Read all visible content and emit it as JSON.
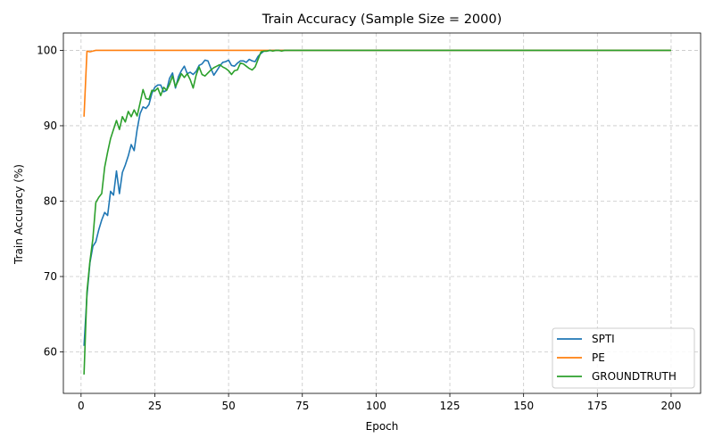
{
  "chart_data": {
    "type": "line",
    "title": "Train Accuracy (Sample Size = 2000)",
    "xlabel": "Epoch",
    "ylabel": "Train Accuracy (%)",
    "xlim": [
      -6,
      210
    ],
    "ylim": [
      54.5,
      102.3
    ],
    "xticks": [
      0,
      25,
      50,
      75,
      100,
      125,
      150,
      175,
      200
    ],
    "yticks": [
      60,
      70,
      80,
      90,
      100
    ],
    "grid": true,
    "legend_position": "bottom-right",
    "series": [
      {
        "name": "SPTI",
        "color": "#1f77b4",
        "points": [
          [
            1,
            60.8
          ],
          [
            2,
            67.5
          ],
          [
            3,
            71.8
          ],
          [
            4,
            74.0
          ],
          [
            5,
            74.6
          ],
          [
            6,
            76.2
          ],
          [
            7,
            77.5
          ],
          [
            8,
            78.5
          ],
          [
            9,
            78.1
          ],
          [
            10,
            81.3
          ],
          [
            11,
            80.8
          ],
          [
            12,
            84.0
          ],
          [
            13,
            81.0
          ],
          [
            14,
            83.8
          ],
          [
            15,
            84.8
          ],
          [
            16,
            86.0
          ],
          [
            17,
            87.5
          ],
          [
            18,
            86.7
          ],
          [
            19,
            89.5
          ],
          [
            20,
            91.6
          ],
          [
            21,
            92.5
          ],
          [
            22,
            92.3
          ],
          [
            23,
            92.8
          ],
          [
            24,
            94.3
          ],
          [
            25,
            95.1
          ],
          [
            26,
            95.4
          ],
          [
            27,
            95.4
          ],
          [
            28,
            94.5
          ],
          [
            29,
            94.7
          ],
          [
            30,
            96.3
          ],
          [
            31,
            97.0
          ],
          [
            32,
            95.0
          ],
          [
            33,
            96.5
          ],
          [
            34,
            97.3
          ],
          [
            35,
            97.9
          ],
          [
            36,
            96.9
          ],
          [
            37,
            97.1
          ],
          [
            38,
            96.8
          ],
          [
            39,
            97.2
          ],
          [
            40,
            98.0
          ],
          [
            41,
            98.2
          ],
          [
            42,
            98.7
          ],
          [
            43,
            98.6
          ],
          [
            44,
            97.6
          ],
          [
            45,
            96.7
          ],
          [
            46,
            97.3
          ],
          [
            47,
            97.9
          ],
          [
            48,
            98.4
          ],
          [
            49,
            98.5
          ],
          [
            50,
            98.7
          ],
          [
            51,
            98.0
          ],
          [
            52,
            97.9
          ],
          [
            53,
            98.3
          ],
          [
            54,
            98.6
          ],
          [
            55,
            98.6
          ],
          [
            56,
            98.4
          ],
          [
            57,
            98.8
          ],
          [
            58,
            98.6
          ],
          [
            59,
            98.5
          ],
          [
            60,
            99.2
          ],
          [
            61,
            99.6
          ],
          [
            62,
            99.9
          ],
          [
            63,
            99.9
          ],
          [
            64,
            100.0
          ],
          [
            70,
            100.0
          ],
          [
            100,
            100.0
          ],
          [
            150,
            100.0
          ],
          [
            200,
            100.0
          ]
        ]
      },
      {
        "name": "PE",
        "color": "#ff7f0e",
        "points": [
          [
            1,
            91.2
          ],
          [
            2,
            99.9
          ],
          [
            3,
            99.8
          ],
          [
            4,
            99.9
          ],
          [
            5,
            100.0
          ],
          [
            10,
            100.0
          ],
          [
            50,
            100.0
          ],
          [
            100,
            100.0
          ],
          [
            150,
            100.0
          ],
          [
            200,
            100.0
          ]
        ]
      },
      {
        "name": "GROUNDTRUTH",
        "color": "#2ca02c",
        "points": [
          [
            1,
            57.0
          ],
          [
            2,
            68.0
          ],
          [
            3,
            72.0
          ],
          [
            4,
            75.0
          ],
          [
            5,
            79.8
          ],
          [
            6,
            80.5
          ],
          [
            7,
            81.0
          ],
          [
            8,
            84.5
          ],
          [
            9,
            86.5
          ],
          [
            10,
            88.3
          ],
          [
            11,
            89.5
          ],
          [
            12,
            90.7
          ],
          [
            13,
            89.5
          ],
          [
            14,
            91.2
          ],
          [
            15,
            90.5
          ],
          [
            16,
            91.9
          ],
          [
            17,
            91.2
          ],
          [
            18,
            92.1
          ],
          [
            19,
            91.3
          ],
          [
            20,
            93.0
          ],
          [
            21,
            94.8
          ],
          [
            22,
            93.6
          ],
          [
            23,
            93.5
          ],
          [
            24,
            94.7
          ],
          [
            25,
            94.6
          ],
          [
            26,
            95.0
          ],
          [
            27,
            94.0
          ],
          [
            28,
            95.1
          ],
          [
            29,
            94.7
          ],
          [
            30,
            95.5
          ],
          [
            31,
            96.6
          ],
          [
            32,
            95.2
          ],
          [
            33,
            96.0
          ],
          [
            34,
            96.9
          ],
          [
            35,
            96.4
          ],
          [
            36,
            96.9
          ],
          [
            37,
            96.1
          ],
          [
            38,
            95.0
          ],
          [
            39,
            96.7
          ],
          [
            40,
            97.8
          ],
          [
            41,
            96.8
          ],
          [
            42,
            96.6
          ],
          [
            43,
            97.0
          ],
          [
            44,
            97.4
          ],
          [
            45,
            97.7
          ],
          [
            46,
            97.9
          ],
          [
            47,
            98.1
          ],
          [
            48,
            97.8
          ],
          [
            49,
            97.6
          ],
          [
            50,
            97.3
          ],
          [
            51,
            96.8
          ],
          [
            52,
            97.3
          ],
          [
            53,
            97.4
          ],
          [
            54,
            98.3
          ],
          [
            55,
            98.2
          ],
          [
            56,
            97.9
          ],
          [
            57,
            97.6
          ],
          [
            58,
            97.4
          ],
          [
            59,
            97.8
          ],
          [
            60,
            98.8
          ],
          [
            61,
            99.8
          ],
          [
            62,
            99.9
          ],
          [
            63,
            99.9
          ],
          [
            64,
            100.0
          ],
          [
            65,
            99.9
          ],
          [
            66,
            100.0
          ],
          [
            67,
            100.0
          ],
          [
            68,
            99.9
          ],
          [
            69,
            100.0
          ],
          [
            70,
            100.0
          ],
          [
            100,
            100.0
          ],
          [
            150,
            100.0
          ],
          [
            200,
            100.0
          ]
        ]
      }
    ]
  }
}
